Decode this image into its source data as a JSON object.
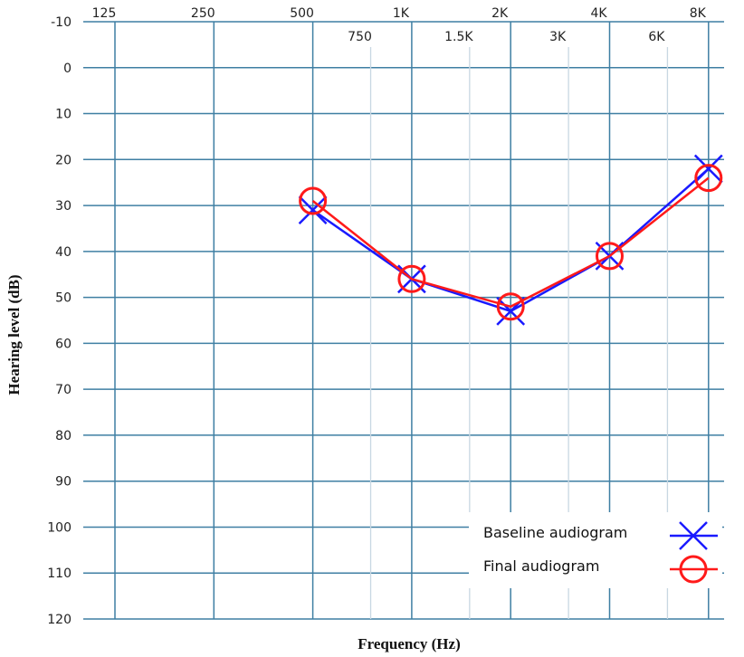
{
  "chart_data": {
    "type": "line",
    "title": "",
    "xlabel": "Frequency (Hz)",
    "ylabel": "Hearing level (dB)",
    "x_scale": "log",
    "y_inverted": true,
    "ylim": [
      -10,
      120
    ],
    "yticks": [
      -10,
      0,
      10,
      20,
      30,
      40,
      50,
      60,
      70,
      80,
      90,
      100,
      110,
      120
    ],
    "major_freqs": [
      {
        "hz": 125,
        "label": "125"
      },
      {
        "hz": 250,
        "label": "250"
      },
      {
        "hz": 500,
        "label": "500"
      },
      {
        "hz": 1000,
        "label": "1K"
      },
      {
        "hz": 2000,
        "label": "2K"
      },
      {
        "hz": 4000,
        "label": "4K"
      },
      {
        "hz": 8000,
        "label": "8K"
      }
    ],
    "minor_freqs": [
      {
        "hz": 750,
        "label": "750"
      },
      {
        "hz": 1500,
        "label": "1.5K"
      },
      {
        "hz": 3000,
        "label": "3K"
      },
      {
        "hz": 6000,
        "label": "6K"
      }
    ],
    "x": [
      500,
      1000,
      2000,
      4000,
      8000
    ],
    "series": [
      {
        "name": "Baseline audiogram",
        "marker": "x",
        "color": "#1a1aff",
        "values": [
          31,
          46,
          53,
          41,
          22
        ]
      },
      {
        "name": "Final audiogram",
        "marker": "o",
        "color": "#ff1a1a",
        "values": [
          29,
          46,
          52,
          41,
          24
        ]
      }
    ],
    "grid": true,
    "legend_position": "bottom-right"
  }
}
